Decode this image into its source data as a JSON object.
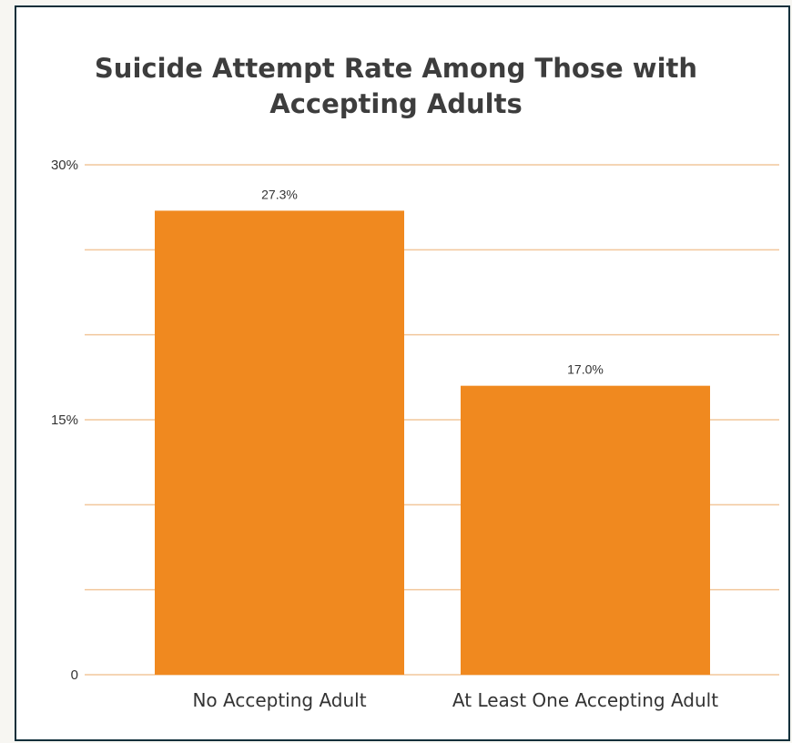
{
  "chart_data": {
    "type": "bar",
    "title_lines": [
      "Suicide Attempt Rate Among Those with",
      "Accepting Adults"
    ],
    "categories": [
      "No Accepting Adult",
      "At Least One Accepting Adult"
    ],
    "values": [
      27.3,
      17.0
    ],
    "value_labels": [
      "27.3%",
      "17.0%"
    ],
    "ylim": [
      0,
      30
    ],
    "yticks": [
      0,
      5,
      10,
      15,
      20,
      25,
      30
    ],
    "ytick_labels": [
      "0",
      "",
      "",
      "15%",
      "",
      "",
      "30%"
    ],
    "grid": true,
    "legend": "none",
    "bar_color": "#f0891f",
    "grid_color": "#f2c79c"
  }
}
